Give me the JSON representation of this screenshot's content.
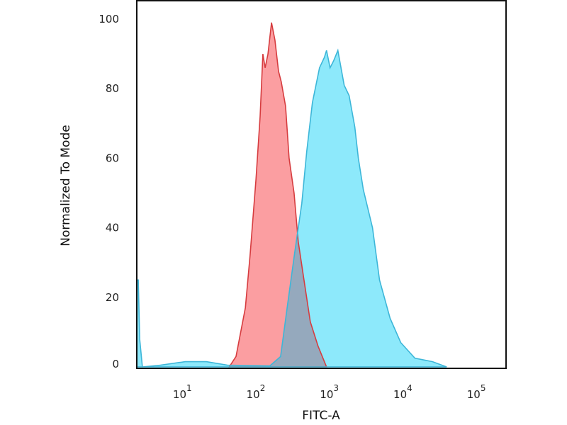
{
  "chart_data": {
    "type": "area",
    "title": "",
    "xlabel": "FITC-A",
    "ylabel": "Normalized To Mode",
    "xscale": "log",
    "xlim": [
      2.1,
      222000
    ],
    "ylim": [
      0,
      100
    ],
    "yticks": [
      0,
      20,
      40,
      60,
      80,
      100
    ],
    "xticks": [
      {
        "value": 10,
        "base": "10",
        "exp": "1"
      },
      {
        "value": 100,
        "base": "10",
        "exp": "2"
      },
      {
        "value": 1000,
        "base": "10",
        "exp": "3"
      },
      {
        "value": 10000,
        "base": "10",
        "exp": "4"
      },
      {
        "value": 100000,
        "base": "10",
        "exp": "5"
      }
    ],
    "grid": false,
    "legend": "none",
    "overlap_color": "#95a9bd",
    "series": [
      {
        "line_color": "#d63c3f",
        "fill_color": "#fb9ea1",
        "points": [
          [
            38,
            0
          ],
          [
            47,
            3
          ],
          [
            63,
            17
          ],
          [
            73,
            32
          ],
          [
            88,
            54
          ],
          [
            100,
            72
          ],
          [
            109,
            90
          ],
          [
            117,
            86
          ],
          [
            128,
            90
          ],
          [
            143,
            99
          ],
          [
            159,
            94
          ],
          [
            178,
            85
          ],
          [
            194,
            82
          ],
          [
            222,
            75
          ],
          [
            248,
            60
          ],
          [
            290,
            50
          ],
          [
            330,
            36
          ],
          [
            395,
            25
          ],
          [
            482,
            13
          ],
          [
            614,
            6
          ],
          [
            802,
            0
          ]
        ]
      },
      {
        "line_color": "#3db6d8",
        "fill_color": "#8de9fb",
        "points": [
          [
            2.1,
            25
          ],
          [
            2.2,
            25
          ],
          [
            2.3,
            8
          ],
          [
            2.5,
            0
          ],
          [
            4.4,
            0.5
          ],
          [
            9.6,
            1.5
          ],
          [
            18.6,
            1.5
          ],
          [
            36,
            0.5
          ],
          [
            136,
            0.3
          ],
          [
            190,
            3
          ],
          [
            237,
            18
          ],
          [
            296,
            33
          ],
          [
            369,
            47
          ],
          [
            431,
            62
          ],
          [
            515,
            76
          ],
          [
            643,
            86
          ],
          [
            750,
            89
          ],
          [
            802,
            91
          ],
          [
            896,
            86
          ],
          [
            1000,
            88
          ],
          [
            1142,
            91
          ],
          [
            1393,
            81
          ],
          [
            1628,
            78
          ],
          [
            1942,
            69
          ],
          [
            2171,
            60
          ],
          [
            2535,
            51
          ],
          [
            3382,
            40
          ],
          [
            4217,
            25
          ],
          [
            5875,
            14
          ],
          [
            8184,
            7
          ],
          [
            12760,
            2.5
          ],
          [
            22180,
            1.5
          ],
          [
            34530,
            0
          ]
        ]
      }
    ]
  }
}
